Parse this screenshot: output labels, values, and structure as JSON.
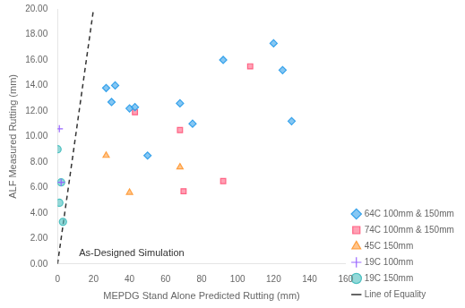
{
  "chart_data": {
    "type": "scatter",
    "xlabel": "MEPDG Stand Alone Predicted Rutting (mm)",
    "ylabel": "ALF Measured Rutting (mm)",
    "annotation": "As-Designed Simulation",
    "series": [
      {
        "name": "64C 100mm & 150mm",
        "marker": "diamond",
        "x": [
          27,
          30,
          32,
          40,
          43,
          50,
          68,
          75,
          92,
          120,
          125,
          130
        ],
        "values": [
          13.8,
          12.7,
          14.0,
          12.2,
          12.3,
          8.5,
          12.6,
          11.0,
          16.0,
          17.3,
          15.2,
          11.2
        ]
      },
      {
        "name": "74C 100mm & 150mm",
        "marker": "square",
        "x": [
          43,
          68,
          70,
          92,
          107
        ],
        "values": [
          11.9,
          10.5,
          5.7,
          6.5,
          15.5
        ]
      },
      {
        "name": "45C 150mm",
        "marker": "triangle",
        "x": [
          27,
          40,
          68
        ],
        "values": [
          8.5,
          5.6,
          7.6
        ]
      },
      {
        "name": "19C 100mm",
        "marker": "plus",
        "x": [
          1,
          2
        ],
        "values": [
          10.6,
          6.4
        ]
      },
      {
        "name": "19C 150mm",
        "marker": "circle",
        "x": [
          0,
          1,
          2,
          3
        ],
        "values": [
          9.0,
          4.8,
          6.4,
          3.3
        ]
      },
      {
        "name": "Line of Equality",
        "type": "line",
        "line_style": "dashed",
        "x": [
          0,
          20
        ],
        "values": [
          0,
          20
        ]
      }
    ],
    "xlim": [
      0,
      160
    ],
    "ylim": [
      0,
      20
    ],
    "xticks": [
      0,
      20,
      40,
      60,
      80,
      100,
      120,
      140,
      160
    ],
    "yticks": [
      {
        "value": 0,
        "label": "0.00"
      },
      {
        "value": 2,
        "label": "2.00"
      },
      {
        "value": 4,
        "label": "4.00"
      },
      {
        "value": 6,
        "label": "6.00"
      },
      {
        "value": 8,
        "label": "8.00"
      },
      {
        "value": 10,
        "label": "10.00"
      },
      {
        "value": 12,
        "label": "12.00"
      },
      {
        "value": 14,
        "label": "14.00"
      },
      {
        "value": 16,
        "label": "16.00"
      },
      {
        "value": 18,
        "label": "18.00"
      },
      {
        "value": 20,
        "label": "20.00"
      }
    ],
    "grid": false,
    "legend": "lower right"
  }
}
